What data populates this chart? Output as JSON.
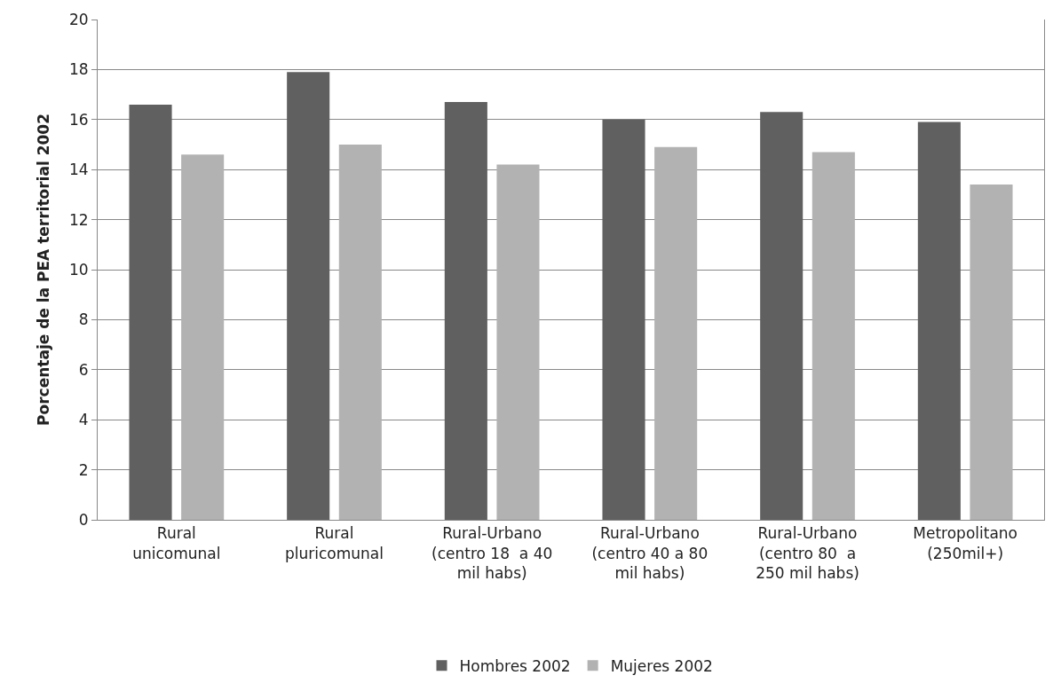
{
  "chart_data": {
    "type": "bar",
    "ylabel": "Porcentaje de la PEA territorial 2002",
    "categories": [
      "Rural\nunicomunal",
      "Rural\npluricomunal",
      "Rural-Urbano\n(centro 18  a 40\nmil habs)",
      "Rural-Urbano\n(centro 40 a 80\nmil habs)",
      "Rural-Urbano\n(centro 80  a\n250 mil habs)",
      "Metropolitano\n(250mil+)"
    ],
    "series": [
      {
        "name": "Hombres 2002",
        "color": "#606060",
        "values": [
          16.6,
          17.9,
          16.7,
          16.0,
          16.3,
          15.9
        ]
      },
      {
        "name": "Mujeres 2002",
        "color": "#b2b2b2",
        "values": [
          14.6,
          15.0,
          14.2,
          14.9,
          14.7,
          13.4
        ]
      }
    ],
    "ylim": [
      0,
      20
    ],
    "yticks": [
      0,
      2,
      4,
      6,
      8,
      10,
      12,
      14,
      16,
      18,
      20
    ],
    "grid": "y",
    "legend": "bottom"
  }
}
